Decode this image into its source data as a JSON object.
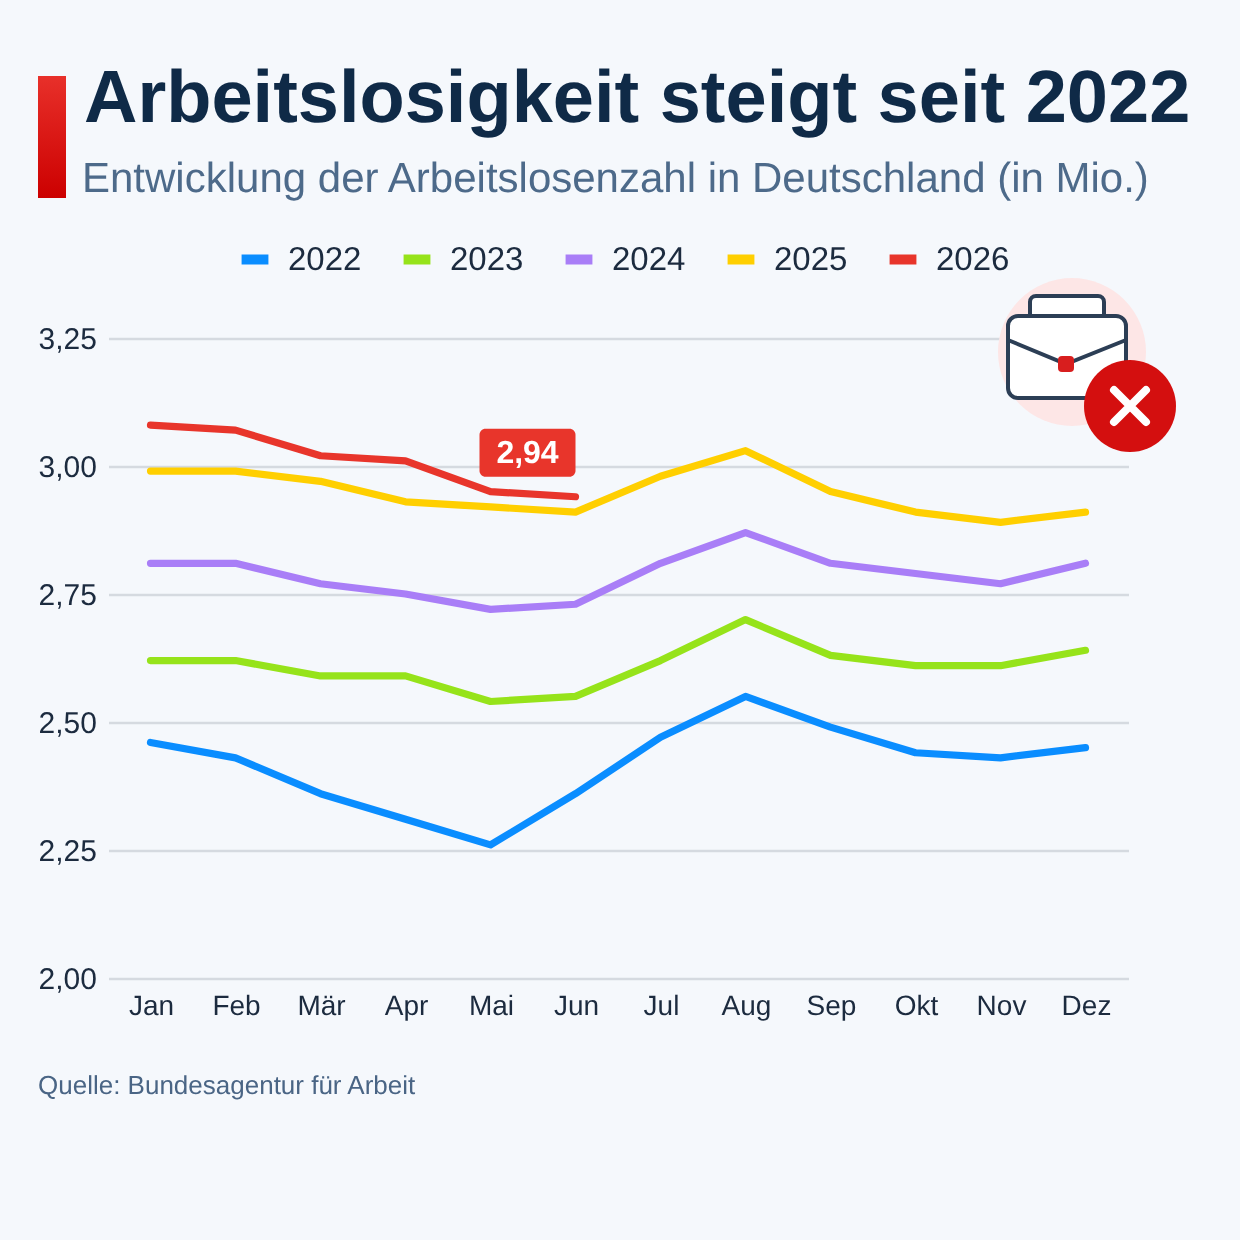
{
  "chart_data": {
    "type": "line",
    "title": "Arbeitslosigkeit steigt seit 2022",
    "subtitle": "Entwicklung der Arbeitslosenzahl in Deutschland (in Mio.)",
    "categories": [
      "Jan",
      "Feb",
      "Mär",
      "Apr",
      "Mai",
      "Jun",
      "Jul",
      "Aug",
      "Sep",
      "Okt",
      "Nov",
      "Dez"
    ],
    "series": [
      {
        "name": "2022",
        "color": "#0a8dff",
        "values": [
          2.46,
          2.43,
          2.36,
          2.31,
          2.26,
          2.36,
          2.47,
          2.55,
          2.49,
          2.44,
          2.43,
          2.45
        ]
      },
      {
        "name": "2023",
        "color": "#96e31a",
        "values": [
          2.62,
          2.62,
          2.59,
          2.59,
          2.54,
          2.55,
          2.62,
          2.7,
          2.63,
          2.61,
          2.61,
          2.64
        ]
      },
      {
        "name": "2024",
        "color": "#a97ef7",
        "values": [
          2.81,
          2.81,
          2.77,
          2.75,
          2.72,
          2.73,
          2.81,
          2.87,
          2.81,
          2.79,
          2.77,
          2.81
        ]
      },
      {
        "name": "2025",
        "color": "#ffcf00",
        "values": [
          2.99,
          2.99,
          2.97,
          2.93,
          2.92,
          2.91,
          2.98,
          3.03,
          2.95,
          2.91,
          2.89,
          2.91
        ]
      },
      {
        "name": "2026",
        "color": "#e8352b",
        "values": [
          3.08,
          3.07,
          3.02,
          3.01,
          2.95,
          2.94,
          null,
          null,
          null,
          null,
          null,
          null
        ],
        "value_labels": [
          null,
          null,
          null,
          null,
          null,
          "2,94",
          null,
          null,
          null,
          null,
          null,
          null
        ]
      }
    ],
    "ylim": [
      2,
      3.25
    ],
    "yticks": [
      {
        "value": 2,
        "label": "2,00"
      },
      {
        "value": 2.25,
        "label": "2,25"
      },
      {
        "value": 2.5,
        "label": "2,50"
      },
      {
        "value": 2.75,
        "label": "2,75"
      },
      {
        "value": 3,
        "label": "3,00"
      },
      {
        "value": 3.25,
        "label": "3,25"
      }
    ],
    "grid": "y",
    "legend": "top",
    "line_style": "solid",
    "annotations": [
      "Quelle: Bundesagentur für Arbeit"
    ]
  }
}
